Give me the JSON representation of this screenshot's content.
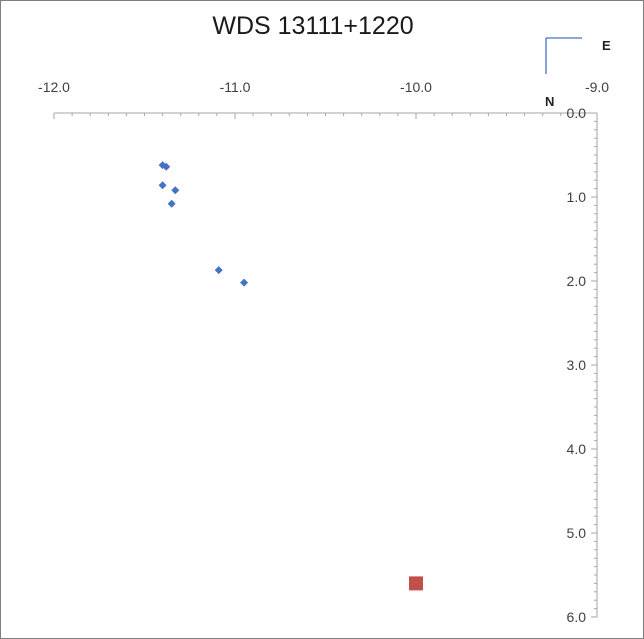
{
  "chart_data": {
    "type": "scatter",
    "title": "WDS 13111+1220",
    "xlabel": "",
    "ylabel": "",
    "xlim": [
      -12.0,
      -9.0
    ],
    "ylim": [
      0.0,
      6.0
    ],
    "y_inverted": true,
    "x_ticks": [
      "-12.0",
      "-11.0",
      "-10.0",
      "-9.0"
    ],
    "y_ticks": [
      "0.0",
      "1.0",
      "2.0",
      "3.0",
      "4.0",
      "5.0",
      "6.0"
    ],
    "grid": false,
    "legend": "none",
    "compass": {
      "east_label": "E",
      "north_label": "N"
    },
    "series": [
      {
        "marker": "diamond",
        "color": "#4472c4",
        "points": [
          {
            "x": -11.4,
            "y": 0.62
          },
          {
            "x": -11.38,
            "y": 0.64
          },
          {
            "x": -11.4,
            "y": 0.86
          },
          {
            "x": -11.33,
            "y": 0.92
          },
          {
            "x": -11.35,
            "y": 1.08
          },
          {
            "x": -11.09,
            "y": 1.87
          },
          {
            "x": -10.95,
            "y": 2.02
          }
        ]
      },
      {
        "marker": "square",
        "color": "#c0504d",
        "points": [
          {
            "x": -10.0,
            "y": 5.6
          }
        ]
      }
    ]
  }
}
